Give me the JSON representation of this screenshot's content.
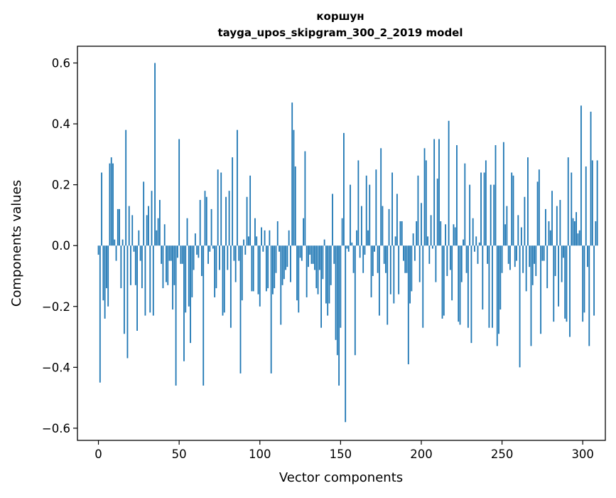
{
  "chart_data": {
    "type": "bar",
    "title": "коршун",
    "subtitle": "tayga_upos_skipgram_300_2_2019 model",
    "xlabel": "Vector components",
    "ylabel": "Components values",
    "xlim": [
      -13,
      314
    ],
    "ylim": [
      -0.64,
      0.655
    ],
    "xticks": [
      0,
      50,
      100,
      150,
      200,
      250,
      300
    ],
    "yticks": [
      -0.6,
      -0.4,
      -0.2,
      0.0,
      0.2,
      0.4,
      0.6
    ],
    "xtick_labels": [
      "0",
      "50",
      "100",
      "150",
      "200",
      "250",
      "300"
    ],
    "ytick_labels": [
      "−0.6",
      "−0.4",
      "−0.2",
      "0.0",
      "0.2",
      "0.4",
      "0.6"
    ],
    "bar_color": "#1f77b4",
    "grid": false,
    "values": [
      -0.03,
      -0.45,
      0.24,
      -0.18,
      -0.24,
      -0.14,
      -0.2,
      0.27,
      0.29,
      0.27,
      0.02,
      -0.05,
      0.12,
      0.12,
      -0.14,
      0.02,
      -0.29,
      0.38,
      -0.37,
      0.13,
      -0.13,
      0.1,
      -0.02,
      -0.13,
      -0.28,
      0.05,
      -0.05,
      -0.14,
      0.21,
      -0.23,
      0.1,
      0.13,
      -0.22,
      0.18,
      -0.23,
      0.6,
      0.05,
      0.09,
      0.15,
      -0.06,
      -0.14,
      0.07,
      -0.12,
      -0.13,
      -0.05,
      -0.05,
      -0.21,
      -0.13,
      -0.46,
      -0.04,
      0.35,
      -0.06,
      -0.06,
      -0.38,
      -0.22,
      0.09,
      -0.2,
      -0.32,
      -0.17,
      -0.08,
      0.04,
      -0.03,
      -0.04,
      0.15,
      -0.1,
      -0.46,
      0.18,
      0.16,
      -0.06,
      -0.02,
      0.12,
      -0.01,
      -0.17,
      -0.14,
      0.25,
      -0.08,
      0.24,
      -0.23,
      -0.22,
      0.16,
      -0.08,
      0.18,
      -0.27,
      0.29,
      -0.05,
      -0.12,
      0.38,
      -0.05,
      -0.42,
      -0.18,
      0.02,
      -0.03,
      0.16,
      0.03,
      0.23,
      -0.15,
      -0.15,
      0.09,
      0.03,
      -0.16,
      -0.2,
      0.06,
      -0.02,
      0.05,
      -0.15,
      -0.14,
      0.05,
      -0.42,
      -0.16,
      -0.14,
      -0.09,
      0.08,
      -0.02,
      -0.26,
      -0.13,
      -0.11,
      -0.08,
      -0.07,
      0.05,
      -0.12,
      0.47,
      0.38,
      0.26,
      -0.18,
      -0.22,
      -0.04,
      -0.05,
      0.09,
      0.31,
      -0.17,
      -0.07,
      -0.03,
      -0.06,
      -0.06,
      -0.08,
      -0.14,
      -0.16,
      -0.08,
      -0.27,
      -0.11,
      0.02,
      -0.19,
      -0.23,
      -0.19,
      -0.13,
      0.17,
      -0.06,
      -0.31,
      -0.36,
      -0.46,
      -0.27,
      0.09,
      0.37,
      -0.58,
      -0.01,
      -0.02,
      0.2,
      0.01,
      -0.09,
      -0.36,
      0.05,
      0.28,
      -0.04,
      0.13,
      -0.09,
      -0.03,
      0.23,
      0.05,
      0.2,
      -0.17,
      -0.1,
      -0.02,
      0.25,
      -0.09,
      -0.23,
      0.32,
      0.13,
      -0.06,
      -0.09,
      -0.26,
      0.12,
      -0.16,
      0.24,
      -0.19,
      0.03,
      0.17,
      -0.16,
      0.08,
      0.08,
      -0.05,
      -0.09,
      -0.09,
      -0.39,
      -0.19,
      -0.15,
      0.04,
      -0.05,
      0.08,
      0.23,
      -0.12,
      0.14,
      -0.27,
      0.32,
      0.28,
      0.03,
      -0.06,
      0.1,
      -0.01,
      0.35,
      -0.12,
      0.22,
      0.35,
      0.08,
      -0.24,
      -0.23,
      0.07,
      -0.1,
      0.41,
      -0.08,
      -0.18,
      0.07,
      0.06,
      0.33,
      -0.25,
      -0.26,
      -0.12,
      0.02,
      0.27,
      -0.09,
      -0.27,
      0.2,
      -0.32,
      0.09,
      -0.02,
      0.03,
      -0.06,
      0.01,
      0.24,
      -0.21,
      0.24,
      0.28,
      -0.06,
      -0.27,
      0.2,
      -0.27,
      0.2,
      0.33,
      -0.33,
      -0.29,
      -0.21,
      -0.09,
      0.34,
      0.07,
      0.13,
      -0.06,
      -0.08,
      0.24,
      0.23,
      -0.07,
      -0.05,
      0.1,
      -0.4,
      0.06,
      -0.09,
      0.16,
      -0.15,
      0.29,
      -0.07,
      -0.33,
      -0.13,
      -0.06,
      -0.1,
      0.21,
      0.25,
      -0.29,
      -0.05,
      -0.05,
      0.12,
      -0.14,
      0.08,
      0.05,
      0.18,
      -0.25,
      -0.1,
      0.13,
      -0.2,
      0.15,
      -0.12,
      -0.04,
      -0.24,
      -0.25,
      0.29,
      -0.3,
      0.24,
      0.09,
      0.08,
      0.11,
      0.04,
      0.05,
      0.46,
      -0.25,
      -0.22,
      0.26,
      -0.07,
      -0.33,
      0.44,
      0.28,
      -0.23,
      0.08,
      0.28
    ]
  }
}
